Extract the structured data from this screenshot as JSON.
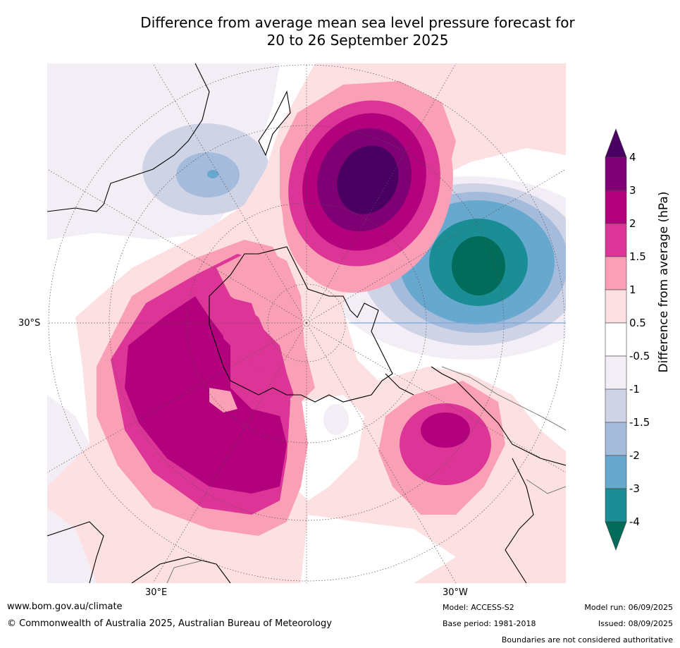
{
  "title_line1": "Difference from average mean sea level pressure forecast for",
  "title_line2": "20 to 26 September 2025",
  "labels": {
    "lat_30s": "30°S",
    "lon_30e": "30°E",
    "lon_30w": "30°W"
  },
  "colorbar": {
    "label": "Difference from average (hPa)",
    "ticks": [
      "4",
      "3",
      "2",
      "1.5",
      "1",
      "0.5",
      "-0.5",
      "-1",
      "-1.5",
      "-2",
      "-3",
      "-4"
    ],
    "colors": [
      "#4a0063",
      "#7e0074",
      "#b3007c",
      "#dd3597",
      "#f9a0b6",
      "#fde0e1",
      "#ffffff",
      "#f3eef6",
      "#cfd3e6",
      "#a5bbdc",
      "#66a8ce",
      "#1b8d95",
      "#016c59"
    ]
  },
  "footer": {
    "website": "www.bom.gov.au/climate",
    "copyright": "© Commonwealth of Australia 2025, Australian Bureau of Meteorology",
    "model": "Model: ACCESS-S2",
    "base_period": "Base period: 1981-2018",
    "model_run": "Model run: 06/09/2025",
    "issued": "Issued: 08/09/2025",
    "disclaimer": "Boundaries are not considered authoritative"
  }
}
